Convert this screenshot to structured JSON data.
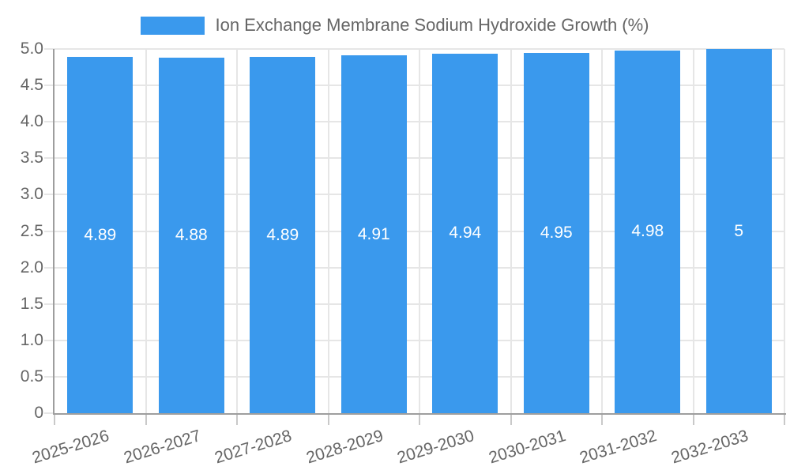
{
  "legend": {
    "label": "Ion Exchange Membrane Sodium Hydroxide Growth (%)"
  },
  "chart_data": {
    "type": "bar",
    "title": "Ion Exchange Membrane Sodium Hydroxide Growth (%)",
    "categories": [
      "2025-2026",
      "2026-2027",
      "2027-2028",
      "2028-2029",
      "2029-2030",
      "2030-2031",
      "2031-2032",
      "2032-2033"
    ],
    "values": [
      4.89,
      4.88,
      4.89,
      4.91,
      4.94,
      4.95,
      4.98,
      5
    ],
    "bar_labels": [
      "4.89",
      "4.88",
      "4.89",
      "4.91",
      "4.94",
      "4.95",
      "4.98",
      "5"
    ],
    "xlabel": "",
    "ylabel": "",
    "ylim": [
      0,
      5
    ],
    "ytick_step": 0.5,
    "ytick_labels": [
      "0",
      "0.5",
      "1.0",
      "1.5",
      "2.0",
      "2.5",
      "3.0",
      "3.5",
      "4.0",
      "4.5",
      "5.0"
    ],
    "grid": true,
    "legend_position": "top-center",
    "x_label_rotation_deg": -17,
    "colors": {
      "bar": "#3a99ed",
      "grid": "#e6e6e6",
      "axis": "#9e9e9e",
      "x_tick_mark": "#c9c9c9",
      "tick_text": "#666666",
      "bar_label_text": "#ffffff"
    }
  }
}
